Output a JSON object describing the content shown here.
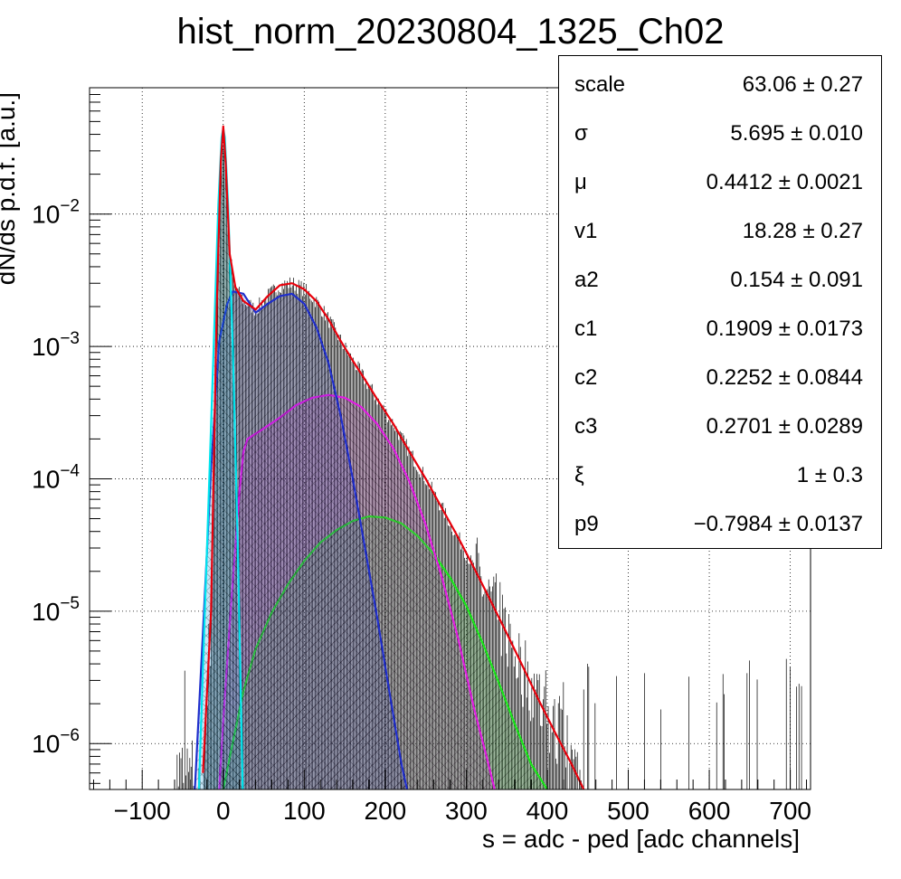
{
  "chart_data": {
    "type": "line",
    "title": "hist_norm_20230804_1325_Ch02",
    "xlabel": "s = adc - ped [adc channels]",
    "ylabel": "dN/ds p.d.f. [a.u.]",
    "x_range": [
      -165,
      725
    ],
    "y_range": [
      4.5e-07,
      0.09
    ],
    "y_scale": "log",
    "grid": true,
    "x_ticks": [
      -100,
      0,
      100,
      200,
      300,
      400,
      500,
      600,
      700
    ],
    "x_tick_labels": [
      "−100",
      "0",
      "100",
      "200",
      "300",
      "400",
      "500",
      "600",
      "700"
    ],
    "y_ticks": [
      {
        "value": 0.01,
        "base": "10",
        "exp": "−2"
      },
      {
        "value": 0.001,
        "base": "10",
        "exp": "−3"
      },
      {
        "value": 0.0001,
        "base": "10",
        "exp": "−4"
      },
      {
        "value": 1e-05,
        "base": "10",
        "exp": "−5"
      },
      {
        "value": 1e-06,
        "base": "10",
        "exp": "−6"
      }
    ],
    "series": [
      {
        "color": "#e8000b",
        "style": "fit-line",
        "x": [
          -25,
          -15,
          -8,
          -3,
          0,
          3,
          8,
          15,
          25,
          40,
          55,
          70,
          85,
          100,
          115,
          130,
          145,
          160,
          175,
          190,
          210,
          230,
          250,
          270,
          290,
          310,
          330,
          350,
          370,
          390,
          410,
          430,
          445
        ],
        "y": [
          6e-07,
          1e-05,
          0.002,
          0.025,
          0.046,
          0.025,
          0.005,
          0.0028,
          0.0022,
          0.0019,
          0.0024,
          0.0029,
          0.003,
          0.0027,
          0.0022,
          0.0016,
          0.0011,
          0.00078,
          0.00056,
          0.0004,
          0.00026,
          0.00016,
          0.0001,
          6e-05,
          3.6e-05,
          2.1e-05,
          1.2e-05,
          6.8e-06,
          3.8e-06,
          2.1e-06,
          1.2e-06,
          7e-07,
          4.5e-07
        ]
      },
      {
        "color": "#00e5ee",
        "style": "filled-hatched",
        "x": [
          -30,
          -20,
          -12,
          -6,
          -2,
          0,
          2,
          6,
          12,
          18,
          24
        ],
        "y": [
          4.5e-07,
          3e-05,
          0.0009,
          0.012,
          0.038,
          0.044,
          0.038,
          0.012,
          0.0009,
          3e-05,
          4.5e-07
        ]
      },
      {
        "color": "#1f2ecc",
        "style": "filled-hatched",
        "x": [
          -35,
          -25,
          -15,
          -5,
          5,
          12,
          25,
          40,
          55,
          70,
          85,
          100,
          115,
          130,
          145,
          160,
          175,
          190,
          205,
          220,
          227
        ],
        "y": [
          4.5e-07,
          7e-06,
          0.00012,
          0.0011,
          0.0021,
          0.0026,
          0.0025,
          0.0018,
          0.0021,
          0.0024,
          0.0025,
          0.0021,
          0.0014,
          0.00075,
          0.0003,
          0.0001,
          3e-05,
          9e-06,
          2.5e-06,
          7e-07,
          4.5e-07
        ]
      },
      {
        "color": "#e11de1",
        "style": "filled-hatched",
        "x": [
          -5,
          0,
          10,
          20,
          25,
          30,
          50,
          70,
          90,
          110,
          130,
          150,
          170,
          190,
          210,
          230,
          250,
          270,
          290,
          310,
          325,
          335
        ],
        "y": [
          4.5e-07,
          1.5e-06,
          1.2e-05,
          8e-05,
          0.00016,
          0.0002,
          0.00024,
          0.00029,
          0.00036,
          0.00041,
          0.00043,
          0.00041,
          0.00035,
          0.00026,
          0.00017,
          9.5e-05,
          4.5e-05,
          1.8e-05,
          6.2e-06,
          1.8e-06,
          8e-07,
          4.5e-07
        ]
      },
      {
        "color": "#19e619",
        "style": "filled-hatched",
        "x": [
          0,
          10,
          25,
          40,
          60,
          80,
          100,
          120,
          140,
          160,
          180,
          200,
          220,
          240,
          260,
          280,
          300,
          320,
          340,
          360,
          380,
          400
        ],
        "y": [
          4.5e-07,
          9e-07,
          2.5e-06,
          5.2e-06,
          9.8e-06,
          1.6e-05,
          2.4e-05,
          3.3e-05,
          4.1e-05,
          4.8e-05,
          5.2e-05,
          5.1e-05,
          4.6e-05,
          3.7e-05,
          2.7e-05,
          1.8e-05,
          1.1e-05,
          5.8e-06,
          2.9e-06,
          1.4e-06,
          7e-07,
          4.5e-07
        ]
      }
    ]
  },
  "stats": [
    {
      "name": "scale",
      "value": "63.06 ± 0.27"
    },
    {
      "name": "σ",
      "value": "5.695 ± 0.010"
    },
    {
      "name": "μ",
      "value": "0.4412 ± 0.0021"
    },
    {
      "name": "v1",
      "value": "18.28 ± 0.27"
    },
    {
      "name": "a2",
      "value": "0.154 ± 0.091"
    },
    {
      "name": "c1",
      "value": "0.1909 ± 0.0173"
    },
    {
      "name": "c2",
      "value": "0.2252 ± 0.0844"
    },
    {
      "name": "c3",
      "value": "0.2701 ± 0.0289"
    },
    {
      "name": "ξ",
      "value": "1 ± 0.3"
    },
    {
      "name": "p9",
      "value": "−0.7984 ± 0.0137"
    }
  ]
}
